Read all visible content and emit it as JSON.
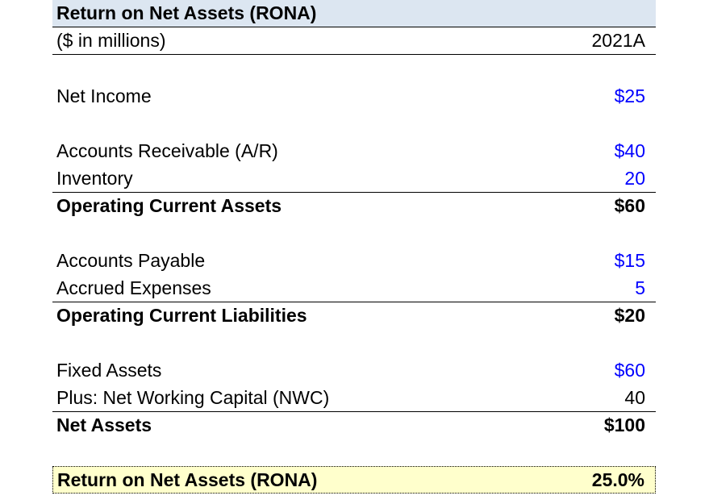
{
  "title": "Return on Net Assets (RONA)",
  "units_label": "($ in millions)",
  "period_header": "2021A",
  "net_income": {
    "label": "Net Income",
    "value": "$25"
  },
  "accounts_receivable": {
    "label": "Accounts Receivable (A/R)",
    "value": "$40"
  },
  "inventory": {
    "label": "Inventory",
    "value": "20"
  },
  "operating_current_assets": {
    "label": "Operating Current Assets",
    "value": "$60"
  },
  "accounts_payable": {
    "label": "Accounts Payable",
    "value": "$15"
  },
  "accrued_expenses": {
    "label": "Accrued Expenses",
    "value": "5"
  },
  "operating_current_liabilities": {
    "label": "Operating Current Liabilities",
    "value": "$20"
  },
  "fixed_assets": {
    "label": "Fixed Assets",
    "value": "$60"
  },
  "net_working_capital": {
    "label": "Plus: Net Working Capital (NWC)",
    "value": "40"
  },
  "net_assets": {
    "label": "Net Assets",
    "value": "$100"
  },
  "rona": {
    "label": "Return on Net Assets (RONA)",
    "value": "25.0%"
  },
  "colors": {
    "header_fill": "#dce6f1",
    "result_fill": "#ffffcc",
    "input_font": "#0000ff",
    "formula_font": "#000000"
  }
}
